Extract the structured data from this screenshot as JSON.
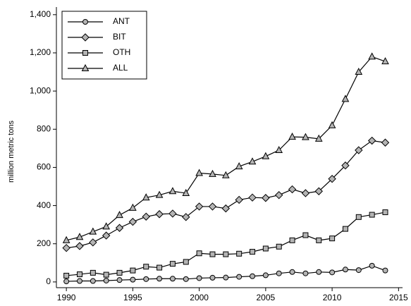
{
  "chart_data": {
    "type": "line",
    "y_label": "million metric tons",
    "x": [
      1990,
      1991,
      1992,
      1993,
      1994,
      1995,
      1996,
      1997,
      1998,
      1999,
      2000,
      2001,
      2002,
      2003,
      2004,
      2005,
      2006,
      2007,
      2008,
      2009,
      2010,
      2011,
      2012,
      2013,
      2014
    ],
    "series": [
      {
        "name": "ANT",
        "color": "#000000",
        "marker": "circle",
        "marker_fill": "#b4b4b4",
        "values": [
          3,
          5,
          5,
          7,
          10,
          12,
          15,
          17,
          17,
          15,
          20,
          22,
          23,
          27,
          30,
          35,
          45,
          52,
          45,
          52,
          50,
          65,
          62,
          85,
          60
        ]
      },
      {
        "name": "BIT",
        "color": "#000000",
        "marker": "diamond",
        "marker_fill": "#b4b4b4",
        "values": [
          178,
          188,
          207,
          243,
          283,
          315,
          342,
          355,
          358,
          340,
          395,
          395,
          385,
          430,
          442,
          440,
          455,
          485,
          465,
          475,
          540,
          610,
          690,
          740,
          730
        ]
      },
      {
        "name": "OTH",
        "color": "#000000",
        "marker": "square",
        "marker_fill": "#b4b4b4",
        "values": [
          33,
          40,
          48,
          38,
          48,
          60,
          80,
          75,
          95,
          105,
          150,
          145,
          145,
          148,
          158,
          175,
          185,
          218,
          245,
          218,
          228,
          278,
          340,
          352,
          365
        ]
      },
      {
        "name": "ALL",
        "color": "#000000",
        "marker": "triangle",
        "marker_fill": "#b4b4b4",
        "values": [
          218,
          235,
          263,
          290,
          350,
          388,
          442,
          455,
          475,
          465,
          570,
          565,
          558,
          605,
          630,
          658,
          690,
          760,
          758,
          750,
          820,
          958,
          1100,
          1180,
          1155
        ]
      }
    ],
    "xlim": [
      1989.25,
      2015.3
    ],
    "xticks": [
      1990,
      1995,
      2000,
      2005,
      2010,
      2015
    ],
    "ylim": [
      -30,
      1440
    ],
    "yticks": [
      0,
      200,
      400,
      600,
      800,
      {
        "value": 1000,
        "label": "1,000"
      },
      {
        "value": 1200,
        "label": "1,200"
      },
      {
        "value": 1400,
        "label": "1,400"
      }
    ],
    "legend": "upper-left"
  }
}
